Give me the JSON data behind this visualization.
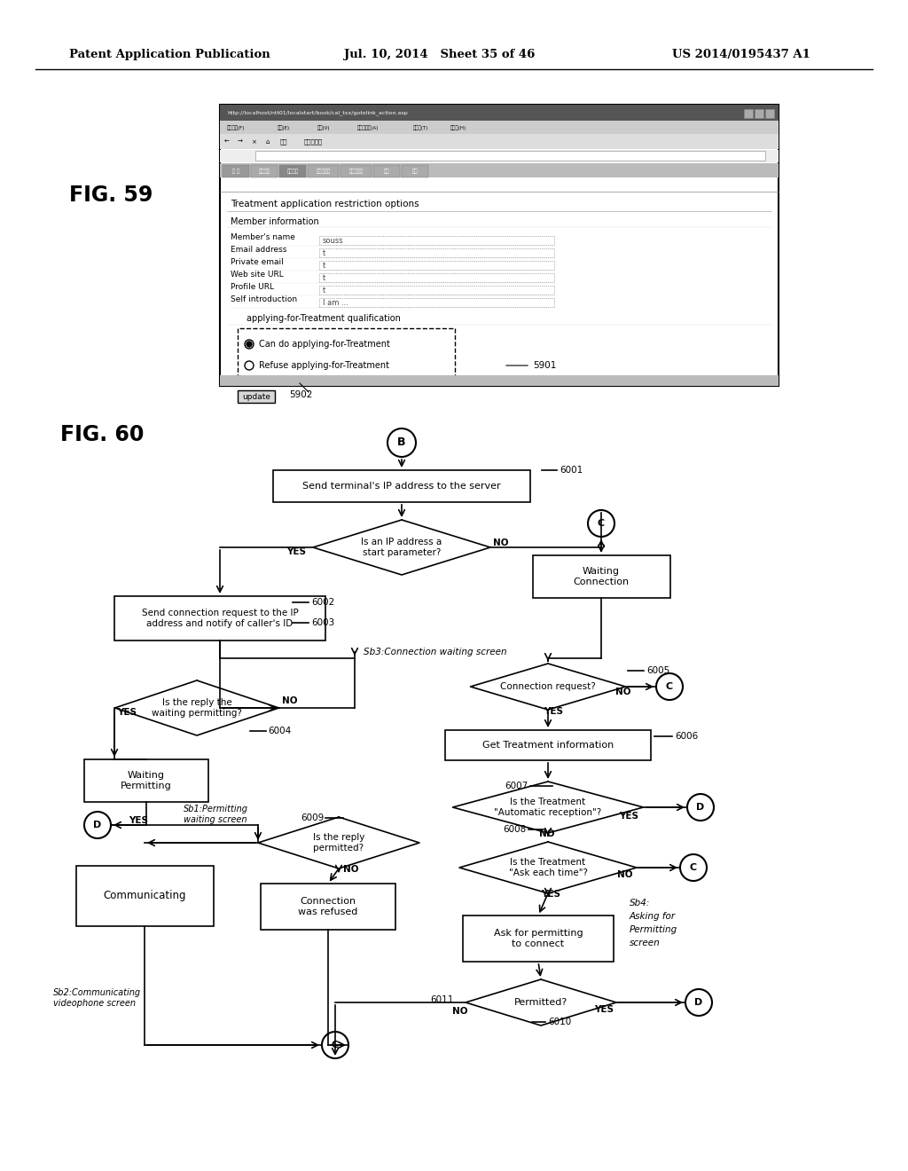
{
  "title_left": "Patent Application Publication",
  "title_mid": "Jul. 10, 2014   Sheet 35 of 46",
  "title_right": "US 2014/0195437 A1",
  "fig59_label": "FIG. 59",
  "fig60_label": "FIG. 60",
  "bg_color": "#ffffff"
}
